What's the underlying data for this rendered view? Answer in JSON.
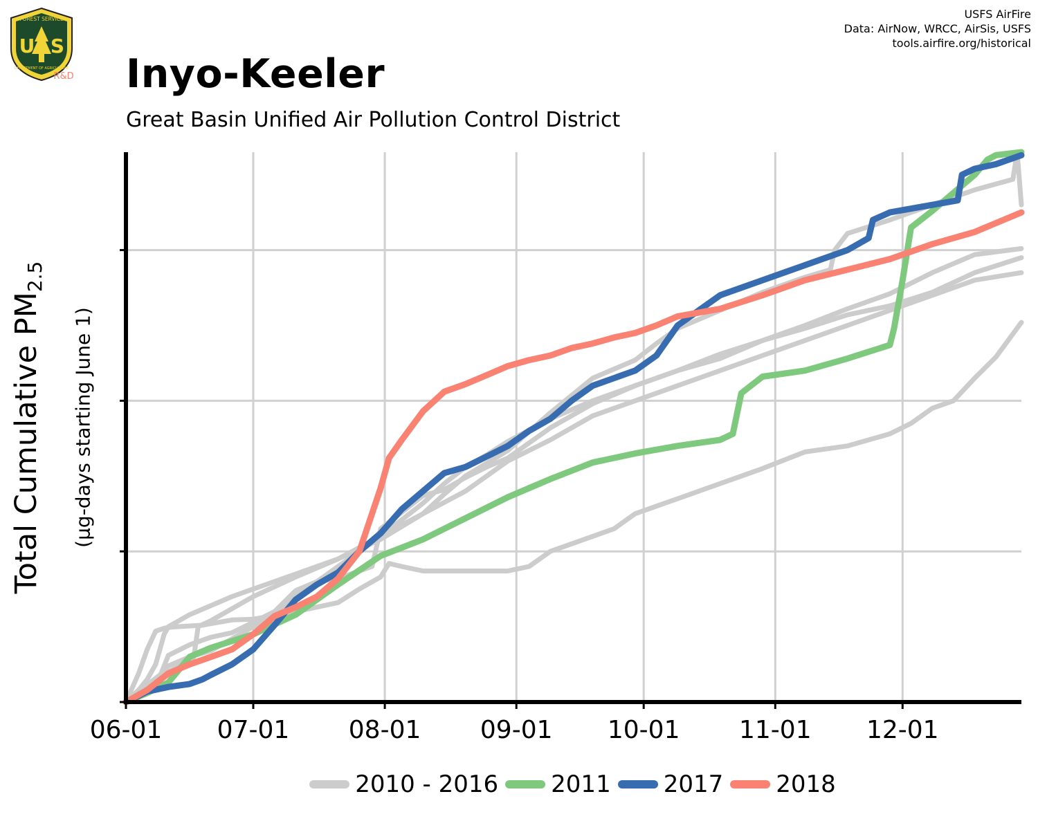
{
  "header": {
    "title": "Inyo-Keeler",
    "subtitle": "Great Basin Unified Air Pollution Control District",
    "credits": [
      "USFS AirFire",
      "Data: AirNow, WRCC, AirSis, USFS",
      "tools.airfire.org/historical"
    ],
    "logo": {
      "lines": [
        "FOREST SERVICE",
        "U",
        "S",
        "DEPARTMENT OF AGRICULTURE"
      ],
      "tag": "R&D"
    }
  },
  "axis_labels": {
    "ylabel_main": "Total Cumulative PM",
    "ylabel_sub": "2.5",
    "ylabel_secondary": "(µg-days starting June 1)"
  },
  "legend": [
    {
      "label": "2010 - 2016",
      "color": "#cccccc"
    },
    {
      "label": "2011",
      "color": "#7fc97f"
    },
    {
      "label": "2017",
      "color": "#386cb0"
    },
    {
      "label": "2018",
      "color": "#f98272"
    }
  ],
  "chart_data": {
    "type": "line",
    "x_axis": {
      "type": "day_of_season",
      "range": [
        0,
        211
      ],
      "ticks": [
        0,
        30,
        61,
        92,
        122,
        153,
        183
      ],
      "tick_labels": [
        "06-01",
        "07-01",
        "08-01",
        "09-01",
        "10-01",
        "11-01",
        "12-01"
      ]
    },
    "y_axis": {
      "range": [
        0,
        3650
      ],
      "ticks": [
        0,
        1000,
        2000,
        3000
      ],
      "tick_labels_shown": false
    },
    "grid": true,
    "legend_placement": "bottom",
    "series": [
      {
        "name": "2010 - 2016",
        "color": "#cccccc",
        "x": [
          0,
          3,
          5,
          7,
          9,
          10,
          12,
          15,
          18,
          20,
          25,
          30,
          40,
          50,
          55,
          60,
          62,
          65,
          70,
          80,
          90,
          95,
          100,
          105,
          110,
          115,
          120,
          125,
          130,
          140,
          150,
          160,
          170,
          180,
          185,
          190,
          195,
          200,
          205,
          211
        ],
        "y": [
          0,
          190,
          350,
          470,
          490,
          495,
          500,
          505,
          510,
          520,
          545,
          550,
          600,
          660,
          750,
          830,
          920,
          900,
          870,
          870,
          870,
          900,
          1000,
          1050,
          1100,
          1150,
          1250,
          1300,
          1350,
          1450,
          1550,
          1660,
          1700,
          1780,
          1850,
          1950,
          2000,
          2150,
          2290,
          2520
        ]
      },
      {
        "name": "2010 - 2016",
        "color": "#cccccc",
        "x": [
          0,
          4,
          8,
          10,
          15,
          20,
          25,
          30,
          35,
          40,
          45,
          50,
          55,
          60,
          65,
          70,
          75,
          80,
          85,
          90,
          100,
          110,
          120,
          130,
          140,
          150,
          160,
          170,
          180,
          190,
          200,
          211
        ],
        "y": [
          0,
          90,
          180,
          240,
          300,
          340,
          420,
          500,
          580,
          700,
          800,
          900,
          1000,
          1100,
          1210,
          1320,
          1450,
          1560,
          1640,
          1730,
          1880,
          2000,
          2100,
          2200,
          2280,
          2400,
          2480,
          2570,
          2630,
          2720,
          2850,
          2950
        ]
      },
      {
        "name": "2010 - 2016",
        "color": "#cccccc",
        "x": [
          0,
          5,
          8,
          10,
          15,
          20,
          25,
          30,
          35,
          40,
          45,
          50,
          55,
          58,
          60,
          65,
          70,
          75,
          80,
          85,
          90,
          95,
          100,
          110,
          120,
          130,
          140,
          150,
          160,
          170,
          180,
          190,
          200,
          211
        ],
        "y": [
          0,
          80,
          170,
          310,
          380,
          430,
          460,
          530,
          600,
          740,
          800,
          820,
          870,
          900,
          1150,
          1260,
          1370,
          1410,
          1490,
          1560,
          1620,
          1720,
          1820,
          1980,
          2100,
          2200,
          2310,
          2400,
          2500,
          2610,
          2710,
          2850,
          2970,
          3010
        ]
      },
      {
        "name": "2010 - 2016",
        "color": "#cccccc",
        "x": [
          0,
          3,
          5,
          7,
          8,
          9,
          10,
          15,
          20,
          25,
          30,
          40,
          50,
          60,
          70,
          80,
          90,
          100,
          110,
          120,
          130,
          140,
          150,
          160,
          170,
          180,
          190,
          200,
          211
        ],
        "y": [
          0,
          80,
          150,
          250,
          350,
          450,
          500,
          580,
          640,
          700,
          750,
          850,
          950,
          1100,
          1250,
          1400,
          1600,
          1740,
          1900,
          2000,
          2100,
          2200,
          2300,
          2400,
          2500,
          2600,
          2700,
          2800,
          2850
        ]
      },
      {
        "name": "2010 - 2016",
        "color": "#cccccc",
        "x": [
          0,
          10,
          16,
          17,
          20,
          30,
          40,
          50,
          60,
          70,
          75,
          80,
          90,
          100,
          110,
          120,
          125,
          130,
          140,
          150,
          160,
          166,
          167,
          170,
          180,
          190,
          200,
          209,
          210,
          211
        ],
        "y": [
          0,
          200,
          300,
          500,
          540,
          700,
          830,
          950,
          1080,
          1250,
          1380,
          1500,
          1670,
          1920,
          2150,
          2270,
          2380,
          2480,
          2600,
          2720,
          2820,
          2870,
          3000,
          3110,
          3200,
          3300,
          3400,
          3470,
          3650,
          3300
        ]
      },
      {
        "name": "2011",
        "color": "#7fc97f",
        "x": [
          0,
          5,
          10,
          15,
          20,
          30,
          40,
          50,
          60,
          70,
          80,
          90,
          100,
          110,
          120,
          130,
          140,
          143,
          145,
          150,
          160,
          170,
          180,
          181,
          183,
          185,
          190,
          200,
          203,
          205,
          211
        ],
        "y": [
          0,
          60,
          130,
          300,
          360,
          450,
          580,
          780,
          970,
          1080,
          1220,
          1360,
          1480,
          1590,
          1650,
          1700,
          1740,
          1780,
          2050,
          2160,
          2200,
          2280,
          2370,
          2480,
          2800,
          3150,
          3260,
          3500,
          3600,
          3630,
          3650
        ]
      },
      {
        "name": "2017",
        "color": "#386cb0",
        "x": [
          0,
          5,
          10,
          15,
          18,
          20,
          25,
          30,
          35,
          40,
          45,
          50,
          55,
          60,
          65,
          70,
          75,
          80,
          85,
          90,
          95,
          100,
          105,
          110,
          120,
          125,
          130,
          140,
          150,
          160,
          170,
          175,
          176,
          180,
          190,
          196,
          197,
          200,
          205,
          211
        ],
        "y": [
          0,
          70,
          100,
          120,
          150,
          180,
          250,
          350,
          510,
          680,
          780,
          860,
          1000,
          1120,
          1280,
          1400,
          1520,
          1560,
          1630,
          1700,
          1800,
          1880,
          2000,
          2100,
          2200,
          2300,
          2500,
          2700,
          2800,
          2900,
          3000,
          3080,
          3200,
          3250,
          3300,
          3330,
          3500,
          3540,
          3570,
          3630
        ]
      },
      {
        "name": "2018",
        "color": "#f98272",
        "x": [
          0,
          5,
          10,
          15,
          20,
          25,
          30,
          35,
          40,
          45,
          50,
          55,
          60,
          62,
          65,
          70,
          75,
          80,
          85,
          90,
          95,
          100,
          105,
          110,
          115,
          120,
          125,
          130,
          140,
          150,
          160,
          170,
          180,
          190,
          200,
          211
        ],
        "y": [
          0,
          80,
          190,
          250,
          300,
          350,
          450,
          570,
          630,
          700,
          820,
          1000,
          1420,
          1620,
          1740,
          1930,
          2060,
          2110,
          2170,
          2230,
          2270,
          2300,
          2350,
          2380,
          2420,
          2450,
          2500,
          2560,
          2610,
          2700,
          2800,
          2870,
          2940,
          3040,
          3120,
          3250
        ]
      }
    ]
  }
}
